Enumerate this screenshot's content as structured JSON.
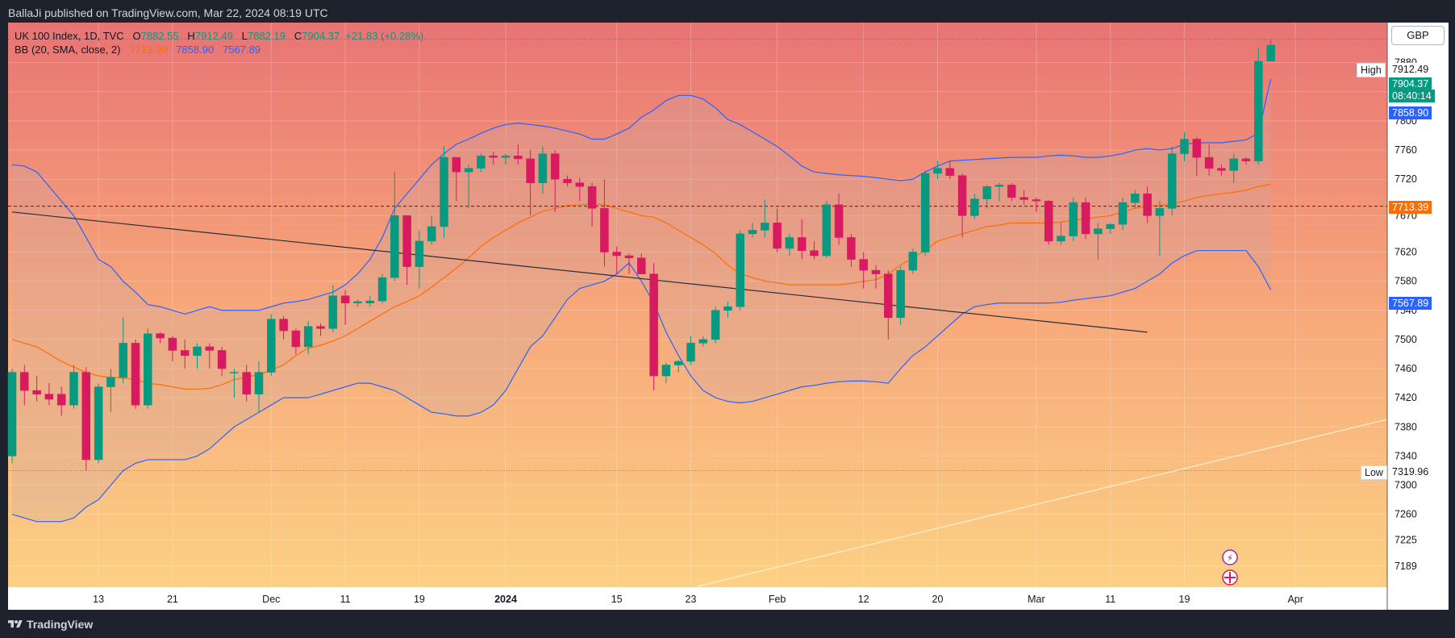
{
  "header": {
    "published": "BallaJi published on TradingView.com, Mar 22, 2024 08:19 UTC"
  },
  "legend": {
    "symbol": "UK 100 Index, 1D, TVC",
    "open_label": "O",
    "open": "7882.55",
    "high_label": "H",
    "high": "7912.49",
    "low_label": "L",
    "low": "7882.19",
    "close_label": "C",
    "close": "7904.37",
    "change": "+21.83 (+0.28%)",
    "bb_label": "BB (20, SMA, close, 2)",
    "bb_basis": "7713.39",
    "bb_upper": "7858.90",
    "bb_lower": "7567.89"
  },
  "currency": "GBP",
  "price_labels": {
    "high_tag": "High",
    "high_value": "7912.49",
    "last_value": "7904.37",
    "countdown": "08:40:14",
    "bb_upper_value": "7858.90",
    "bb_basis_value": "7713.39",
    "bb_lower_value": "7567.89",
    "low_tag": "Low",
    "low_value": "7319.96"
  },
  "footer": {
    "brand": "TradingView"
  },
  "colors": {
    "up": "#089981",
    "down": "#d81b60",
    "bb_band": "#2962ff",
    "bb_basis": "#ff6d00",
    "price_axis_bg": "#ffffff"
  },
  "chart_data": {
    "type": "candlestick",
    "title": "UK 100 Index, 1D, TVC",
    "y_ticks": [
      7189,
      7225,
      7260,
      7300,
      7340,
      7380,
      7420,
      7460,
      7500,
      7540,
      7580,
      7620,
      7670,
      7720,
      7760,
      7800,
      7840,
      7880
    ],
    "x_ticks": [
      {
        "label": "13",
        "i": 7
      },
      {
        "label": "21",
        "i": 13
      },
      {
        "label": "Dec",
        "i": 21
      },
      {
        "label": "11",
        "i": 27
      },
      {
        "label": "19",
        "i": 33
      },
      {
        "label": "2024",
        "i": 40,
        "bold": true
      },
      {
        "label": "15",
        "i": 49
      },
      {
        "label": "23",
        "i": 55
      },
      {
        "label": "Feb",
        "i": 62
      },
      {
        "label": "12",
        "i": 69
      },
      {
        "label": "20",
        "i": 75
      },
      {
        "label": "Mar",
        "i": 83
      },
      {
        "label": "11",
        "i": 89
      },
      {
        "label": "19",
        "i": 95
      },
      {
        "label": "Apr",
        "i": 104
      }
    ],
    "ohlc": [
      [
        7340,
        7460,
        7330,
        7455
      ],
      [
        7455,
        7465,
        7410,
        7430
      ],
      [
        7430,
        7450,
        7415,
        7425
      ],
      [
        7425,
        7440,
        7410,
        7418
      ],
      [
        7425,
        7435,
        7395,
        7410
      ],
      [
        7410,
        7465,
        7405,
        7455
      ],
      [
        7455,
        7462,
        7320,
        7335
      ],
      [
        7335,
        7440,
        7330,
        7435
      ],
      [
        7435,
        7460,
        7400,
        7448
      ],
      [
        7448,
        7530,
        7440,
        7495
      ],
      [
        7495,
        7500,
        7405,
        7410
      ],
      [
        7410,
        7515,
        7405,
        7508
      ],
      [
        7508,
        7510,
        7495,
        7502
      ],
      [
        7502,
        7505,
        7470,
        7485
      ],
      [
        7485,
        7500,
        7460,
        7478
      ],
      [
        7478,
        7495,
        7460,
        7490
      ],
      [
        7490,
        7495,
        7460,
        7485
      ],
      [
        7485,
        7490,
        7450,
        7460
      ],
      [
        7455,
        7460,
        7420,
        7455
      ],
      [
        7455,
        7465,
        7415,
        7425
      ],
      [
        7425,
        7470,
        7400,
        7455
      ],
      [
        7455,
        7535,
        7450,
        7528
      ],
      [
        7528,
        7532,
        7500,
        7512
      ],
      [
        7512,
        7515,
        7480,
        7490
      ],
      [
        7490,
        7525,
        7480,
        7518
      ],
      [
        7518,
        7522,
        7505,
        7515
      ],
      [
        7515,
        7575,
        7510,
        7560
      ],
      [
        7560,
        7568,
        7520,
        7550
      ],
      [
        7550,
        7555,
        7545,
        7552
      ],
      [
        7550,
        7560,
        7545,
        7553
      ],
      [
        7553,
        7590,
        7550,
        7585
      ],
      [
        7585,
        7730,
        7580,
        7670
      ],
      [
        7670,
        7670,
        7575,
        7600
      ],
      [
        7600,
        7650,
        7570,
        7635
      ],
      [
        7635,
        7670,
        7630,
        7655
      ],
      [
        7655,
        7765,
        7640,
        7750
      ],
      [
        7750,
        7745,
        7690,
        7730
      ],
      [
        7730,
        7740,
        7680,
        7735
      ],
      [
        7735,
        7755,
        7730,
        7752
      ],
      [
        7752,
        7758,
        7740,
        7750
      ],
      [
        7750,
        7755,
        7740,
        7752
      ],
      [
        7752,
        7768,
        7740,
        7748
      ],
      [
        7748,
        7760,
        7670,
        7715
      ],
      [
        7715,
        7765,
        7700,
        7755
      ],
      [
        7755,
        7760,
        7675,
        7720
      ],
      [
        7720,
        7725,
        7710,
        7715
      ],
      [
        7715,
        7722,
        7690,
        7710
      ],
      [
        7710,
        7715,
        7655,
        7680
      ],
      [
        7680,
        7720,
        7600,
        7620
      ],
      [
        7620,
        7628,
        7590,
        7615
      ],
      [
        7615,
        7618,
        7590,
        7612
      ],
      [
        7612,
        7618,
        7590,
        7590
      ],
      [
        7590,
        7605,
        7430,
        7450
      ],
      [
        7450,
        7468,
        7440,
        7465
      ],
      [
        7465,
        7472,
        7455,
        7470
      ],
      [
        7470,
        7505,
        7465,
        7495
      ],
      [
        7495,
        7505,
        7490,
        7500
      ],
      [
        7500,
        7545,
        7495,
        7540
      ],
      [
        7540,
        7552,
        7530,
        7545
      ],
      [
        7545,
        7650,
        7540,
        7645
      ],
      [
        7645,
        7660,
        7640,
        7650
      ],
      [
        7650,
        7692,
        7640,
        7660
      ],
      [
        7660,
        7680,
        7620,
        7625
      ],
      [
        7625,
        7645,
        7615,
        7640
      ],
      [
        7640,
        7665,
        7610,
        7622
      ],
      [
        7622,
        7635,
        7610,
        7615
      ],
      [
        7615,
        7690,
        7612,
        7685
      ],
      [
        7685,
        7700,
        7630,
        7640
      ],
      [
        7640,
        7645,
        7600,
        7610
      ],
      [
        7610,
        7620,
        7570,
        7595
      ],
      [
        7595,
        7602,
        7570,
        7590
      ],
      [
        7590,
        7595,
        7500,
        7530
      ],
      [
        7530,
        7600,
        7520,
        7595
      ],
      [
        7595,
        7625,
        7590,
        7620
      ],
      [
        7620,
        7732,
        7615,
        7728
      ],
      [
        7728,
        7745,
        7720,
        7735
      ],
      [
        7735,
        7745,
        7720,
        7725
      ],
      [
        7725,
        7728,
        7640,
        7670
      ],
      [
        7670,
        7700,
        7665,
        7693
      ],
      [
        7693,
        7712,
        7680,
        7710
      ],
      [
        7710,
        7715,
        7690,
        7712
      ],
      [
        7712,
        7715,
        7690,
        7695
      ],
      [
        7695,
        7705,
        7685,
        7692
      ],
      [
        7692,
        7695,
        7675,
        7690
      ],
      [
        7690,
        7692,
        7630,
        7635
      ],
      [
        7635,
        7660,
        7630,
        7642
      ],
      [
        7642,
        7695,
        7635,
        7688
      ],
      [
        7688,
        7695,
        7638,
        7645
      ],
      [
        7645,
        7660,
        7610,
        7652
      ],
      [
        7652,
        7660,
        7645,
        7658
      ],
      [
        7658,
        7695,
        7650,
        7688
      ],
      [
        7688,
        7705,
        7680,
        7700
      ],
      [
        7700,
        7710,
        7660,
        7670
      ],
      [
        7670,
        7690,
        7615,
        7680
      ],
      [
        7680,
        7765,
        7670,
        7755
      ],
      [
        7755,
        7785,
        7745,
        7775
      ],
      [
        7775,
        7778,
        7725,
        7750
      ],
      [
        7750,
        7768,
        7725,
        7735
      ],
      [
        7735,
        7740,
        7725,
        7732
      ],
      [
        7732,
        7755,
        7715,
        7748
      ],
      [
        7748,
        7750,
        7740,
        7745
      ],
      [
        7745,
        7900,
        7740,
        7882
      ],
      [
        7882,
        7912,
        7882,
        7904
      ]
    ],
    "bb_upper": [
      7740,
      7738,
      7730,
      7710,
      7690,
      7670,
      7640,
      7610,
      7600,
      7580,
      7565,
      7548,
      7545,
      7540,
      7535,
      7540,
      7545,
      7540,
      7540,
      7540,
      7540,
      7545,
      7550,
      7552,
      7555,
      7560,
      7565,
      7575,
      7590,
      7610,
      7640,
      7680,
      7700,
      7720,
      7740,
      7755,
      7768,
      7775,
      7783,
      7790,
      7795,
      7797,
      7795,
      7793,
      7790,
      7786,
      7782,
      7775,
      7775,
      7782,
      7790,
      7805,
      7815,
      7828,
      7835,
      7835,
      7830,
      7818,
      7802,
      7795,
      7785,
      7775,
      7765,
      7752,
      7738,
      7730,
      7728,
      7726,
      7725,
      7724,
      7722,
      7720,
      7718,
      7720,
      7730,
      7738,
      7745,
      7746,
      7747,
      7748,
      7749,
      7750,
      7750,
      7750,
      7752,
      7753,
      7752,
      7750,
      7750,
      7752,
      7755,
      7760,
      7762,
      7760,
      7762,
      7768,
      7770,
      7770,
      7770,
      7772,
      7774,
      7783,
      7858
    ],
    "bb_basis": [
      7500,
      7495,
      7490,
      7480,
      7470,
      7462,
      7455,
      7450,
      7448,
      7447,
      7445,
      7440,
      7438,
      7435,
      7432,
      7432,
      7433,
      7438,
      7445,
      7448,
      7452,
      7458,
      7465,
      7478,
      7488,
      7492,
      7498,
      7505,
      7515,
      7525,
      7535,
      7545,
      7552,
      7560,
      7572,
      7585,
      7598,
      7612,
      7628,
      7640,
      7650,
      7660,
      7668,
      7676,
      7680,
      7684,
      7685,
      7686,
      7685,
      7680,
      7675,
      7670,
      7668,
      7660,
      7650,
      7640,
      7630,
      7618,
      7602,
      7590,
      7585,
      7580,
      7578,
      7575,
      7575,
      7575,
      7575,
      7575,
      7577,
      7580,
      7582,
      7590,
      7602,
      7612,
      7622,
      7635,
      7640,
      7645,
      7650,
      7655,
      7657,
      7660,
      7660,
      7660,
      7660,
      7661,
      7664,
      7666,
      7668,
      7670,
      7675,
      7680,
      7683,
      7684,
      7686,
      7690,
      7695,
      7698,
      7700,
      7702,
      7705,
      7710,
      7713
    ],
    "bb_lower": [
      7260,
      7255,
      7250,
      7250,
      7250,
      7255,
      7270,
      7280,
      7300,
      7320,
      7330,
      7335,
      7335,
      7335,
      7335,
      7340,
      7350,
      7365,
      7380,
      7390,
      7400,
      7410,
      7420,
      7420,
      7420,
      7425,
      7430,
      7435,
      7440,
      7440,
      7435,
      7430,
      7420,
      7410,
      7400,
      7398,
      7395,
      7395,
      7400,
      7410,
      7430,
      7460,
      7490,
      7505,
      7530,
      7555,
      7570,
      7575,
      7580,
      7590,
      7605,
      7580,
      7550,
      7510,
      7478,
      7450,
      7430,
      7420,
      7415,
      7413,
      7415,
      7420,
      7425,
      7430,
      7435,
      7437,
      7440,
      7442,
      7443,
      7443,
      7442,
      7440,
      7460,
      7478,
      7490,
      7505,
      7520,
      7535,
      7545,
      7548,
      7550,
      7550,
      7550,
      7550,
      7550,
      7551,
      7554,
      7556,
      7558,
      7560,
      7565,
      7570,
      7580,
      7590,
      7605,
      7615,
      7622,
      7622,
      7622,
      7622,
      7622,
      7600,
      7568
    ],
    "trendline": [
      [
        0,
        7675
      ],
      [
        92,
        7510
      ]
    ],
    "horizontal_level": 7683,
    "ylim": [
      7160,
      7935
    ]
  }
}
